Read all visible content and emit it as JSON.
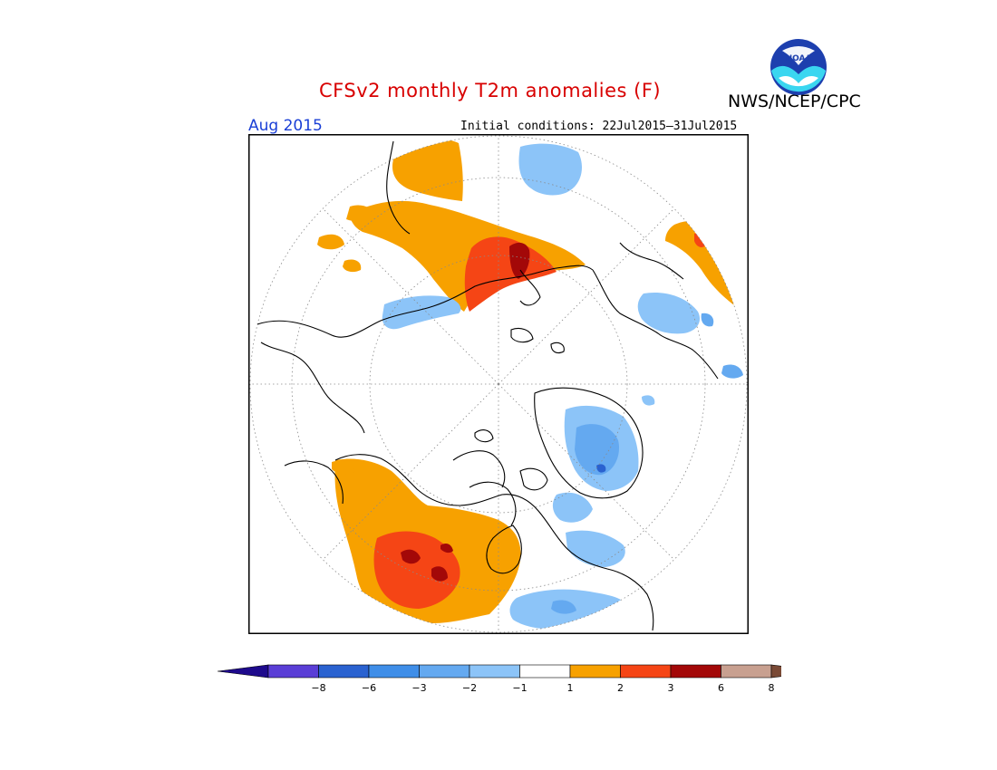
{
  "header": {
    "title": "CFSv2 monthly T2m anomalies (F)",
    "agency": "NWS/NCEP/CPC",
    "logo_text": "NOAA",
    "valid_month": "Aug 2015",
    "initial_conditions": "Initial conditions: 22Jul2015–31Jul2015"
  },
  "map": {
    "projection": "north-polar-stereographic",
    "variable": "2m temperature anomaly",
    "units": "F"
  },
  "legend": {
    "under_color": "#1e0a8c",
    "over_color": "#7a4a36",
    "bins": [
      {
        "color": "#5a3ed6"
      },
      {
        "color": "#2a62d0"
      },
      {
        "color": "#3f8ee8"
      },
      {
        "color": "#64a9f0"
      },
      {
        "color": "#8cc4f8"
      },
      {
        "color": "#ffffff"
      },
      {
        "color": "#f7a100"
      },
      {
        "color": "#f54515"
      },
      {
        "color": "#a30808"
      },
      {
        "color": "#c8a090"
      }
    ],
    "tick_labels": [
      "−8",
      "−6",
      "−3",
      "−2",
      "−1",
      "1",
      "2",
      "3",
      "6",
      "8"
    ]
  },
  "colors": {
    "title": "#d80000",
    "month": "#1a3fd6",
    "warm1": "#f7a100",
    "warm2": "#f54515",
    "warm3": "#a30808",
    "cool1": "#8cc4f8",
    "cool2": "#64a9f0",
    "cool3": "#2a62d0"
  }
}
